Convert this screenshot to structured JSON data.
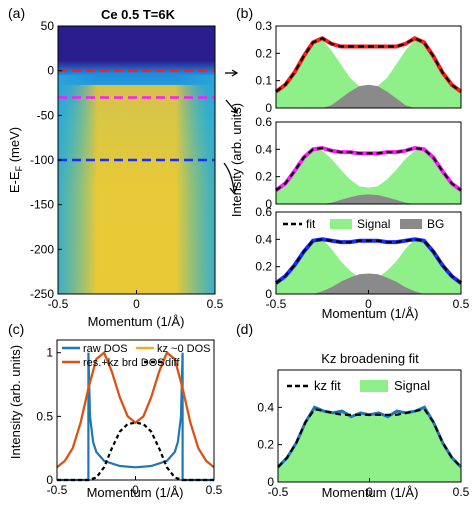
{
  "colors": {
    "fit": "#000000",
    "signal": "#8ff08a",
    "bg": "#8a8a8a",
    "cut_red": "#ff1a1a",
    "cut_magenta": "#ff1aff",
    "cut_blue": "#1a2cff",
    "c_raw": "#1f77b4",
    "c_res": "#d95319",
    "c_kz0": "#edb120",
    "c_diff": "#000000",
    "map_top": "#2a1e8f"
  },
  "chart_data": [
    {
      "id": "a",
      "panel_label": "(a)",
      "type": "heatmap",
      "title": "Ce 0.5 T=6K",
      "xlabel": "Momentum (1/Å)",
      "ylabel_main": "E-E",
      "ylabel_sub": "F",
      "ylabel_unit": " (meV)",
      "xlim": [
        -0.5,
        0.5
      ],
      "ylim": [
        -250,
        50
      ],
      "xticks": [
        -0.5,
        0,
        0.5
      ],
      "xtick_labels": [
        "-0.5",
        "0",
        "0.5"
      ],
      "yticks": [
        50,
        0,
        -50,
        -100,
        -150,
        -200,
        -250
      ],
      "ytick_labels": [
        "50",
        "0",
        "-50",
        "-100",
        "-150",
        "-200",
        "-250"
      ],
      "cuts": [
        {
          "energy": 0,
          "color": "red"
        },
        {
          "energy": -30,
          "color": "magenta"
        },
        {
          "energy": -100,
          "color": "blue"
        }
      ]
    },
    {
      "id": "b1",
      "panel_label": "(b)",
      "type": "area",
      "xlim": [
        -0.5,
        0.5
      ],
      "ylim": [
        0,
        0.3
      ],
      "yticks": [
        0,
        0.1,
        0.2,
        0.3
      ],
      "ytick_labels": [
        "0",
        "0.1",
        "0.2",
        "0.3"
      ],
      "series": [
        {
          "role": "signal",
          "x": [
            -0.5,
            -0.45,
            -0.4,
            -0.35,
            -0.3,
            -0.25,
            -0.2,
            -0.15,
            -0.1,
            -0.05,
            0,
            0.05,
            0.1,
            0.15,
            0.2,
            0.25,
            0.3,
            0.35,
            0.4,
            0.45,
            0.5
          ],
          "y": [
            0.06,
            0.085,
            0.13,
            0.19,
            0.24,
            0.25,
            0.21,
            0.16,
            0.11,
            0.08,
            0.07,
            0.08,
            0.11,
            0.16,
            0.21,
            0.25,
            0.24,
            0.19,
            0.13,
            0.085,
            0.06
          ]
        },
        {
          "role": "bg",
          "x": [
            -0.25,
            -0.2,
            -0.15,
            -0.1,
            -0.05,
            0,
            0.05,
            0.1,
            0.15,
            0.2,
            0.25
          ],
          "y": [
            0,
            0.01,
            0.035,
            0.06,
            0.08,
            0.085,
            0.08,
            0.06,
            0.035,
            0.01,
            0
          ]
        },
        {
          "role": "fit",
          "x": [
            -0.5,
            -0.45,
            -0.4,
            -0.35,
            -0.3,
            -0.25,
            -0.2,
            -0.15,
            -0.1,
            -0.05,
            0,
            0.05,
            0.1,
            0.15,
            0.2,
            0.25,
            0.3,
            0.35,
            0.4,
            0.45,
            0.5
          ],
          "y": [
            0.06,
            0.085,
            0.13,
            0.19,
            0.24,
            0.255,
            0.235,
            0.225,
            0.225,
            0.225,
            0.225,
            0.225,
            0.225,
            0.225,
            0.235,
            0.255,
            0.24,
            0.19,
            0.13,
            0.085,
            0.06
          ]
        }
      ],
      "data_color": "red"
    },
    {
      "id": "b2",
      "type": "area",
      "xlim": [
        -0.5,
        0.5
      ],
      "ylim": [
        0,
        0.6
      ],
      "yticks": [
        0,
        0.2,
        0.4,
        0.6
      ],
      "ytick_labels": [
        "0",
        "0.2",
        "0.4",
        "0.6"
      ],
      "series": [
        {
          "role": "signal",
          "x": [
            -0.5,
            -0.45,
            -0.4,
            -0.35,
            -0.3,
            -0.25,
            -0.2,
            -0.15,
            -0.1,
            -0.05,
            0,
            0.05,
            0.1,
            0.15,
            0.2,
            0.25,
            0.3,
            0.35,
            0.4,
            0.45,
            0.5
          ],
          "y": [
            0.1,
            0.15,
            0.24,
            0.34,
            0.4,
            0.39,
            0.33,
            0.25,
            0.18,
            0.13,
            0.12,
            0.13,
            0.18,
            0.25,
            0.33,
            0.39,
            0.4,
            0.34,
            0.24,
            0.15,
            0.1
          ]
        },
        {
          "role": "bg",
          "x": [
            -0.25,
            -0.2,
            -0.15,
            -0.1,
            -0.05,
            0,
            0.05,
            0.1,
            0.15,
            0.2,
            0.25
          ],
          "y": [
            0,
            0.01,
            0.03,
            0.05,
            0.065,
            0.07,
            0.065,
            0.05,
            0.03,
            0.01,
            0
          ]
        },
        {
          "role": "fit",
          "x": [
            -0.5,
            -0.45,
            -0.4,
            -0.35,
            -0.3,
            -0.25,
            -0.2,
            -0.15,
            -0.1,
            -0.05,
            0,
            0.05,
            0.1,
            0.15,
            0.2,
            0.25,
            0.3,
            0.35,
            0.4,
            0.45,
            0.5
          ],
          "y": [
            0.1,
            0.15,
            0.24,
            0.34,
            0.4,
            0.41,
            0.39,
            0.38,
            0.38,
            0.37,
            0.37,
            0.37,
            0.38,
            0.38,
            0.39,
            0.41,
            0.4,
            0.34,
            0.24,
            0.15,
            0.1
          ]
        }
      ],
      "data_color": "magenta"
    },
    {
      "id": "b3",
      "type": "area",
      "xlabel": "Momentum (1/Å)",
      "xlim": [
        -0.5,
        0.5
      ],
      "ylim": [
        0,
        0.6
      ],
      "xticks": [
        -0.5,
        0,
        0.5
      ],
      "xtick_labels": [
        "-0.5",
        "0",
        "0.5"
      ],
      "yticks": [
        0,
        0.2,
        0.4,
        0.6
      ],
      "ytick_labels": [
        "0",
        "0.2",
        "0.4",
        "0.6"
      ],
      "legend": [
        "fit",
        "Signal",
        "BG"
      ],
      "legend_position": "top",
      "series": [
        {
          "role": "signal",
          "x": [
            -0.5,
            -0.45,
            -0.4,
            -0.35,
            -0.3,
            -0.25,
            -0.2,
            -0.15,
            -0.1,
            -0.05,
            0,
            0.05,
            0.1,
            0.15,
            0.2,
            0.25,
            0.3,
            0.35,
            0.4,
            0.45,
            0.5
          ],
          "y": [
            0.08,
            0.13,
            0.21,
            0.31,
            0.39,
            0.4,
            0.33,
            0.24,
            0.17,
            0.12,
            0.11,
            0.12,
            0.17,
            0.24,
            0.33,
            0.4,
            0.39,
            0.31,
            0.21,
            0.13,
            0.08
          ]
        },
        {
          "role": "bg",
          "x": [
            -0.3,
            -0.25,
            -0.2,
            -0.15,
            -0.1,
            -0.05,
            0,
            0.05,
            0.1,
            0.15,
            0.2,
            0.25,
            0.3
          ],
          "y": [
            0,
            0.02,
            0.05,
            0.09,
            0.12,
            0.145,
            0.15,
            0.145,
            0.12,
            0.09,
            0.05,
            0.02,
            0
          ]
        },
        {
          "role": "fit",
          "x": [
            -0.5,
            -0.45,
            -0.4,
            -0.35,
            -0.3,
            -0.25,
            -0.2,
            -0.15,
            -0.1,
            -0.05,
            0,
            0.05,
            0.1,
            0.15,
            0.2,
            0.25,
            0.3,
            0.35,
            0.4,
            0.45,
            0.5
          ],
          "y": [
            0.08,
            0.13,
            0.21,
            0.31,
            0.39,
            0.4,
            0.39,
            0.38,
            0.38,
            0.39,
            0.39,
            0.39,
            0.38,
            0.38,
            0.39,
            0.4,
            0.39,
            0.31,
            0.21,
            0.13,
            0.08
          ]
        }
      ],
      "data_color": "blue"
    },
    {
      "id": "c",
      "panel_label": "(c)",
      "type": "line",
      "xlabel": "Momentum (1/Å)",
      "ylabel": "Intensity (arb. units)",
      "xlim": [
        -0.5,
        0.5
      ],
      "ylim": [
        0,
        1.1
      ],
      "xticks": [
        -0.5,
        0,
        0.5
      ],
      "xtick_labels": [
        "-0.5",
        "0",
        "0.5"
      ],
      "yticks": [
        0,
        0.5,
        1
      ],
      "ytick_labels": [
        "0",
        "0.5",
        "1"
      ],
      "legend": [
        "raw DOS",
        "kz ~0 DOS",
        "res.+kz brd DOS",
        "diff"
      ],
      "series": [
        {
          "name": "raw DOS",
          "x": [
            -0.5,
            -0.35,
            -0.3,
            -0.3,
            -0.29,
            -0.27,
            -0.25,
            -0.2,
            -0.1,
            0,
            0.1,
            0.2,
            0.25,
            0.27,
            0.29,
            0.3,
            0.3,
            0.35,
            0.5
          ],
          "y": [
            0,
            0,
            0,
            1,
            0.5,
            0.3,
            0.22,
            0.15,
            0.11,
            0.1,
            0.11,
            0.15,
            0.22,
            0.3,
            0.5,
            1,
            0,
            0,
            0
          ]
        },
        {
          "name": "kz ~0 DOS",
          "x": [
            -0.5,
            -0.45,
            -0.4,
            -0.35,
            -0.3,
            -0.25,
            -0.2,
            -0.15,
            -0.1,
            -0.05,
            0,
            0.05,
            0.1,
            0.15,
            0.2,
            0.25,
            0.3,
            0.35,
            0.4,
            0.45,
            0.5
          ],
          "y": [
            0.1,
            0.15,
            0.25,
            0.45,
            0.72,
            0.95,
            1.0,
            0.85,
            0.65,
            0.5,
            0.45,
            0.5,
            0.65,
            0.85,
            1.0,
            0.95,
            0.72,
            0.45,
            0.25,
            0.15,
            0.1
          ]
        },
        {
          "name": "res.+kz brd DOS",
          "x": [
            -0.5,
            -0.45,
            -0.4,
            -0.35,
            -0.3,
            -0.25,
            -0.2,
            -0.15,
            -0.1,
            -0.05,
            0,
            0.05,
            0.1,
            0.15,
            0.2,
            0.25,
            0.3,
            0.35,
            0.4,
            0.45,
            0.5
          ],
          "y": [
            0.1,
            0.15,
            0.25,
            0.45,
            0.72,
            0.95,
            1.0,
            0.85,
            0.65,
            0.5,
            0.45,
            0.5,
            0.65,
            0.85,
            1.0,
            0.95,
            0.72,
            0.45,
            0.25,
            0.15,
            0.1
          ]
        },
        {
          "name": "diff",
          "x": [
            -0.5,
            -0.35,
            -0.3,
            -0.25,
            -0.2,
            -0.15,
            -0.1,
            -0.05,
            0,
            0.05,
            0.1,
            0.15,
            0.2,
            0.25,
            0.3,
            0.35,
            0.5
          ],
          "y": [
            0,
            0,
            0,
            0.02,
            0.1,
            0.25,
            0.38,
            0.44,
            0.45,
            0.44,
            0.38,
            0.25,
            0.1,
            0.02,
            0,
            0,
            0
          ]
        }
      ]
    },
    {
      "id": "d",
      "panel_label": "(d)",
      "type": "area",
      "title": "Kz broadening fit",
      "xlabel": "Momentum (1/Å)",
      "xlim": [
        -0.5,
        0.5
      ],
      "ylim": [
        0,
        0.6
      ],
      "xticks": [
        -0.5,
        0,
        0.5
      ],
      "xtick_labels": [
        "-0.5",
        "0",
        "0.5"
      ],
      "yticks": [
        0,
        0.2,
        0.4
      ],
      "ytick_labels": [
        "0",
        "0.2",
        "0.4"
      ],
      "legend": [
        "kz fit",
        "Signal"
      ],
      "series": [
        {
          "role": "signal",
          "x": [
            -0.5,
            -0.45,
            -0.4,
            -0.35,
            -0.3,
            -0.25,
            -0.2,
            -0.15,
            -0.1,
            -0.05,
            0,
            0.05,
            0.1,
            0.15,
            0.2,
            0.25,
            0.3,
            0.35,
            0.4,
            0.45,
            0.5
          ],
          "y": [
            0.08,
            0.13,
            0.21,
            0.32,
            0.4,
            0.38,
            0.37,
            0.38,
            0.35,
            0.37,
            0.36,
            0.37,
            0.35,
            0.38,
            0.37,
            0.38,
            0.4,
            0.32,
            0.21,
            0.13,
            0.08
          ]
        },
        {
          "role": "fit",
          "x": [
            -0.5,
            -0.45,
            -0.4,
            -0.35,
            -0.3,
            -0.25,
            -0.2,
            -0.15,
            -0.1,
            -0.05,
            0,
            0.05,
            0.1,
            0.15,
            0.2,
            0.25,
            0.3,
            0.35,
            0.4,
            0.45,
            0.5
          ],
          "y": [
            0.08,
            0.13,
            0.21,
            0.32,
            0.39,
            0.38,
            0.37,
            0.36,
            0.36,
            0.36,
            0.36,
            0.36,
            0.36,
            0.36,
            0.37,
            0.38,
            0.39,
            0.32,
            0.21,
            0.13,
            0.08
          ]
        }
      ]
    }
  ],
  "shared": {
    "b_ylabel": "Intensity (arb. units)"
  }
}
